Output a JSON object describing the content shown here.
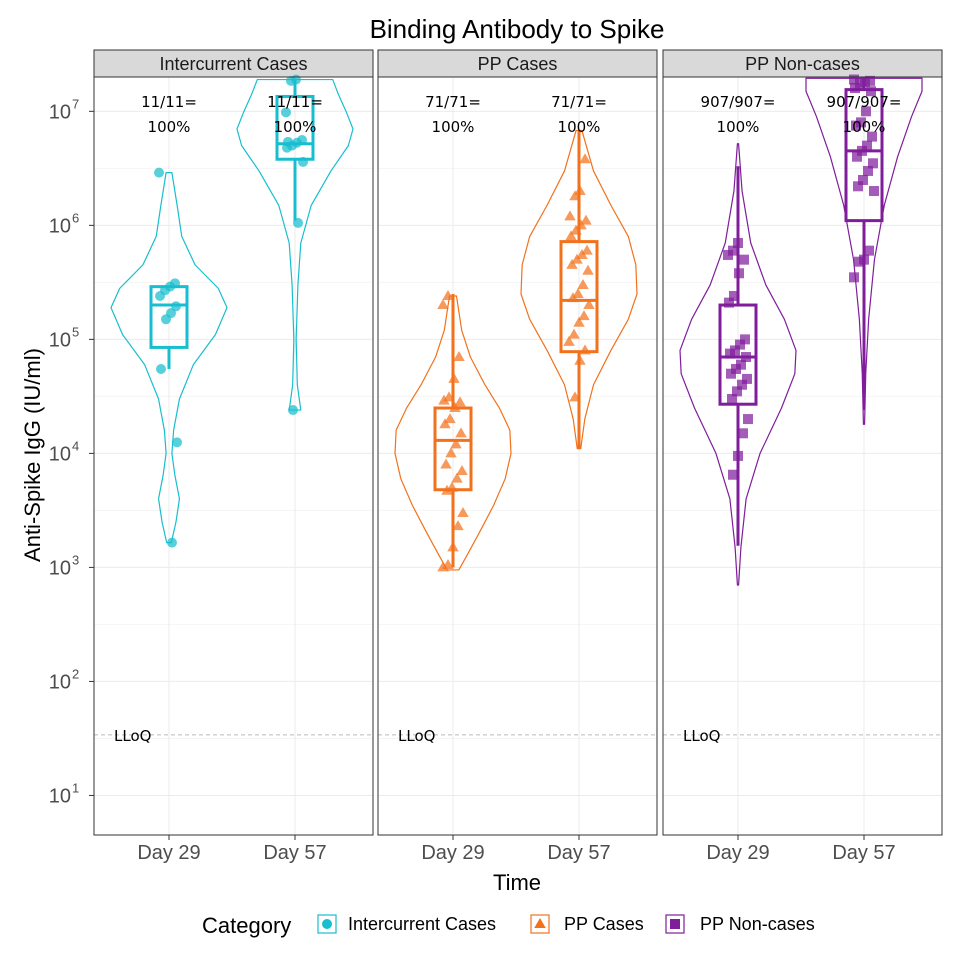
{
  "chart_data": {
    "type": "violin",
    "title": "Binding Antibody to Spike",
    "xlabel": "Time",
    "ylabel": "Anti-Spike IgG (IU/ml)",
    "y_scale": "log10",
    "ylim": [
      4.5,
      20000000
    ],
    "y_ticks": [
      {
        "value": 10,
        "base": "10",
        "exp": "1"
      },
      {
        "value": 100,
        "base": "10",
        "exp": "2"
      },
      {
        "value": 1000,
        "base": "10",
        "exp": "3"
      },
      {
        "value": 10000,
        "base": "10",
        "exp": "4"
      },
      {
        "value": 100000,
        "base": "10",
        "exp": "5"
      },
      {
        "value": 1000000,
        "base": "10",
        "exp": "6"
      },
      {
        "value": 10000000,
        "base": "10",
        "exp": "7"
      }
    ],
    "categories": [
      "Day 29",
      "Day 57"
    ],
    "lloq": {
      "value": 34,
      "label": "LLoQ"
    },
    "legend": {
      "title": "Category",
      "placement": "bottom",
      "items": [
        {
          "label": "Intercurrent Cases",
          "color": "#17becf",
          "shape": "circle"
        },
        {
          "label": "PP Cases",
          "color": "#f2711c",
          "shape": "triangle"
        },
        {
          "label": "PP Non-cases",
          "color": "#7f1d9b",
          "shape": "square"
        }
      ]
    },
    "panels": [
      {
        "name": "Intercurrent Cases",
        "color": "#17becf",
        "shape": "circle",
        "groups": [
          {
            "category": "Day 29",
            "annot_top": "11/11=",
            "annot_bottom": "100%",
            "box": {
              "q1": 85000,
              "median": 200000,
              "q3": 290000,
              "whisker_low": 55000,
              "whisker_high": 290000
            },
            "violin": {
              "min": 1650,
              "max": 2900000,
              "profile": [
                [
                  1650,
                  0.04
                ],
                [
                  2500,
                  0.12
                ],
                [
                  4000,
                  0.18
                ],
                [
                  6500,
                  0.1
                ],
                [
                  10000,
                  0.05
                ],
                [
                  16000,
                  0.08
                ],
                [
                  30000,
                  0.18
                ],
                [
                  60000,
                  0.42
                ],
                [
                  110000,
                  0.8
                ],
                [
                  190000,
                  1.0
                ],
                [
                  280000,
                  0.85
                ],
                [
                  450000,
                  0.45
                ],
                [
                  800000,
                  0.22
                ],
                [
                  1500000,
                  0.14
                ],
                [
                  2900000,
                  0.05
                ]
              ]
            },
            "points": [
              2900000,
              310000,
              290000,
              270000,
              240000,
              195000,
              170000,
              150000,
              55000,
              12500,
              1650
            ]
          },
          {
            "category": "Day 57",
            "annot_top": "11/11=",
            "annot_bottom": "100%",
            "box": {
              "q1": 3800000,
              "median": 5200000,
              "q3": 13500000,
              "whisker_low": 1100000,
              "whisker_high": 19000000
            },
            "violin": {
              "min": 24000,
              "max": 19000000,
              "profile": [
                [
                  24000,
                  0.1
                ],
                [
                  40000,
                  0.04
                ],
                [
                  100000,
                  0.02
                ],
                [
                  300000,
                  0.05
                ],
                [
                  700000,
                  0.1
                ],
                [
                  1500000,
                  0.28
                ],
                [
                  3000000,
                  0.62
                ],
                [
                  5000000,
                  0.92
                ],
                [
                  7000000,
                  1.0
                ],
                [
                  10000000,
                  0.88
                ],
                [
                  14000000,
                  0.75
                ],
                [
                  19000000,
                  0.65
                ]
              ]
            },
            "points": [
              19000000,
              18500000,
              9800000,
              5600000,
              5300000,
              5000000,
              4800000,
              3600000,
              1050000,
              24000,
              5400000
            ]
          }
        ]
      },
      {
        "name": "PP Cases",
        "color": "#f2711c",
        "shape": "triangle",
        "groups": [
          {
            "category": "Day 29",
            "annot_top": "71/71=",
            "annot_bottom": "100%",
            "box": {
              "q1": 4800.0,
              "median": 13000,
              "q3": 25000,
              "whisker_low": 1000,
              "whisker_high": 250000
            },
            "violin": {
              "min": 950,
              "max": 240000,
              "profile": [
                [
                  950,
                  0.1
                ],
                [
                  1300,
                  0.25
                ],
                [
                  2000,
                  0.45
                ],
                [
                  3500,
                  0.7
                ],
                [
                  6000,
                  0.9
                ],
                [
                  10000,
                  1.0
                ],
                [
                  16000,
                  0.98
                ],
                [
                  25000,
                  0.8
                ],
                [
                  40000,
                  0.55
                ],
                [
                  70000,
                  0.3
                ],
                [
                  120000,
                  0.15
                ],
                [
                  240000,
                  0.06
                ]
              ]
            },
            "points": [
              240000,
              200000,
              70000,
              45000,
              31000,
              29000,
              28000,
              25000,
              20000,
              18000,
              15000,
              12000,
              10000,
              8000,
              7000,
              6000,
              5000,
              4700,
              3000,
              2300,
              1500,
              1050,
              1000
            ]
          },
          {
            "category": "Day 57",
            "annot_top": "71/71=",
            "annot_bottom": "100%",
            "box": {
              "q1": 78000,
              "median": 220000,
              "q3": 720000,
              "whisker_low": 11000,
              "whisker_high": 6800000
            },
            "violin": {
              "min": 11000,
              "max": 6800000,
              "profile": [
                [
                  11000,
                  0.03
                ],
                [
                  20000,
                  0.1
                ],
                [
                  40000,
                  0.25
                ],
                [
                  80000,
                  0.55
                ],
                [
                  150000,
                  0.85
                ],
                [
                  250000,
                  1.0
                ],
                [
                  450000,
                  0.98
                ],
                [
                  800000,
                  0.85
                ],
                [
                  1500000,
                  0.55
                ],
                [
                  3000000,
                  0.25
                ],
                [
                  6800000,
                  0.05
                ]
              ]
            },
            "points": [
              3800000,
              2000000,
              1800000,
              1200000,
              1100000,
              1000000,
              900000,
              800000,
              600000,
              550000,
              500000,
              450000,
              400000,
              300000,
              250000,
              230000,
              200000,
              160000,
              140000,
              110000,
              95000,
              80000,
              65000,
              31000
            ]
          }
        ]
      },
      {
        "name": "PP Non-cases",
        "color": "#7f1d9b",
        "shape": "square",
        "groups": [
          {
            "category": "Day 29",
            "annot_top": "907/907=",
            "annot_bottom": "100%",
            "box": {
              "q1": 27000,
              "median": 70000,
              "q3": 200000,
              "whisker_low": 1550,
              "whisker_high": 3300000
            },
            "violin": {
              "min": 700,
              "max": 5200000,
              "profile": [
                [
                  700,
                  0.01
                ],
                [
                  1500,
                  0.05
                ],
                [
                  4000,
                  0.14
                ],
                [
                  10000,
                  0.38
                ],
                [
                  25000,
                  0.75
                ],
                [
                  50000,
                  0.98
                ],
                [
                  80000,
                  1.0
                ],
                [
                  150000,
                  0.8
                ],
                [
                  300000,
                  0.48
                ],
                [
                  700000,
                  0.22
                ],
                [
                  2000000,
                  0.07
                ],
                [
                  5200000,
                  0.01
                ]
              ]
            },
            "points": [
              700000,
              600000,
              550000,
              500000,
              380000,
              240000,
              210000,
              100000,
              90000,
              80000,
              75000,
              70000,
              60000,
              55000,
              50000,
              45000,
              40000,
              35000,
              30000,
              20000,
              15000,
              9500,
              6500
            ]
          },
          {
            "category": "Day 57",
            "annot_top": "907/907=",
            "annot_bottom": "100%",
            "box": {
              "q1": 1100000,
              "median": 4500000,
              "q3": 15500000,
              "whisker_low": 24000,
              "whisker_high": 19500000
            },
            "violin": {
              "min": 18000,
              "max": 19500000,
              "profile": [
                [
                  18000,
                  0.01
                ],
                [
                  50000,
                  0.03
                ],
                [
                  150000,
                  0.08
                ],
                [
                  500000,
                  0.18
                ],
                [
                  1500000,
                  0.35
                ],
                [
                  4000000,
                  0.58
                ],
                [
                  9000000,
                  0.82
                ],
                [
                  15000000,
                  1.0
                ],
                [
                  19500000,
                  1.0
                ]
              ]
            },
            "points": [
              19000000,
              18500000,
              18000000,
              17500000,
              16000000,
              15000000,
              10000000,
              8000000,
              7500000,
              6000000,
              5000000,
              4500000,
              4000000,
              3500000,
              3000000,
              2500000,
              2200000,
              2000000,
              600000,
              500000,
              480000,
              350000
            ]
          }
        ]
      }
    ]
  }
}
